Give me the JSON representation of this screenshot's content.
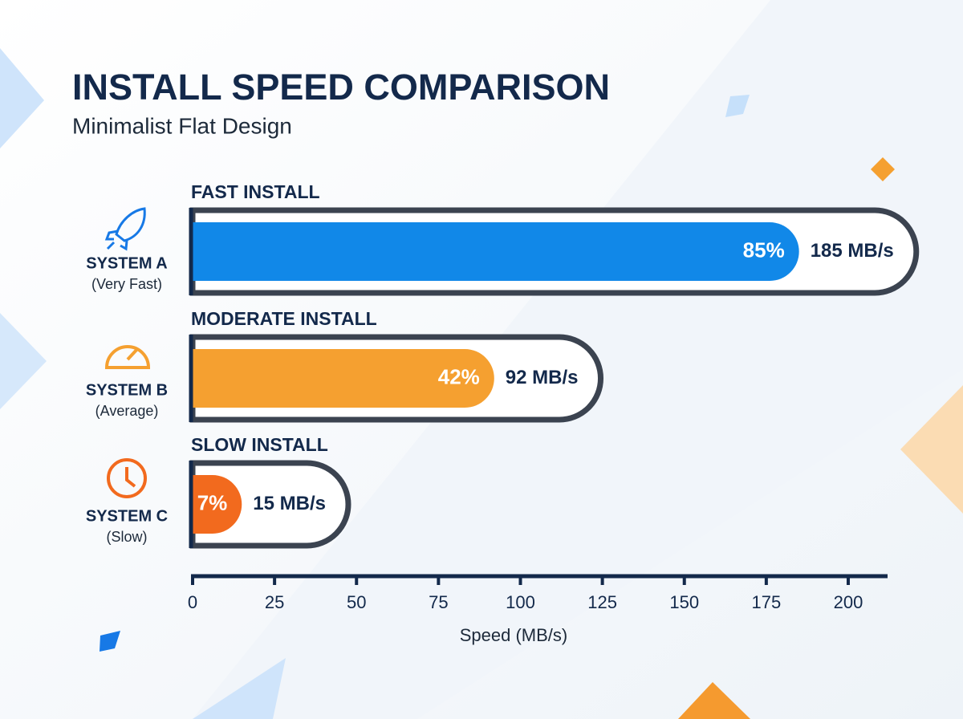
{
  "chart_data": {
    "type": "bar",
    "orientation": "horizontal",
    "title": "INSTALL SPEED COMPARISON",
    "subtitle": "Minimalist Flat Design",
    "categories": [
      "SYSTEM A",
      "SYSTEM B",
      "SYSTEM C"
    ],
    "category_notes": [
      "(Very Fast)",
      "(Average)",
      "(Slow)"
    ],
    "group_labels": [
      "FAST INSTALL",
      "MODERATE INSTALL",
      "SLOW INSTALL"
    ],
    "series": [
      {
        "name": "Speed",
        "colors": [
          "#1188e8",
          "#f5a030",
          "#f26a1e"
        ],
        "values": [
          185,
          92,
          15
        ],
        "value_labels": [
          "185 MB/s",
          "92 MB/s",
          "15 MB/s"
        ]
      }
    ],
    "percentages": {
      "values": [
        85,
        42,
        7
      ],
      "value_labels": [
        "85%",
        "42%",
        "7%"
      ]
    },
    "xlabel": "Speed (MB/s)",
    "xlim": [
      0,
      212
    ],
    "xticks": [
      0,
      25,
      50,
      75,
      100,
      125,
      150,
      175,
      200
    ]
  }
}
